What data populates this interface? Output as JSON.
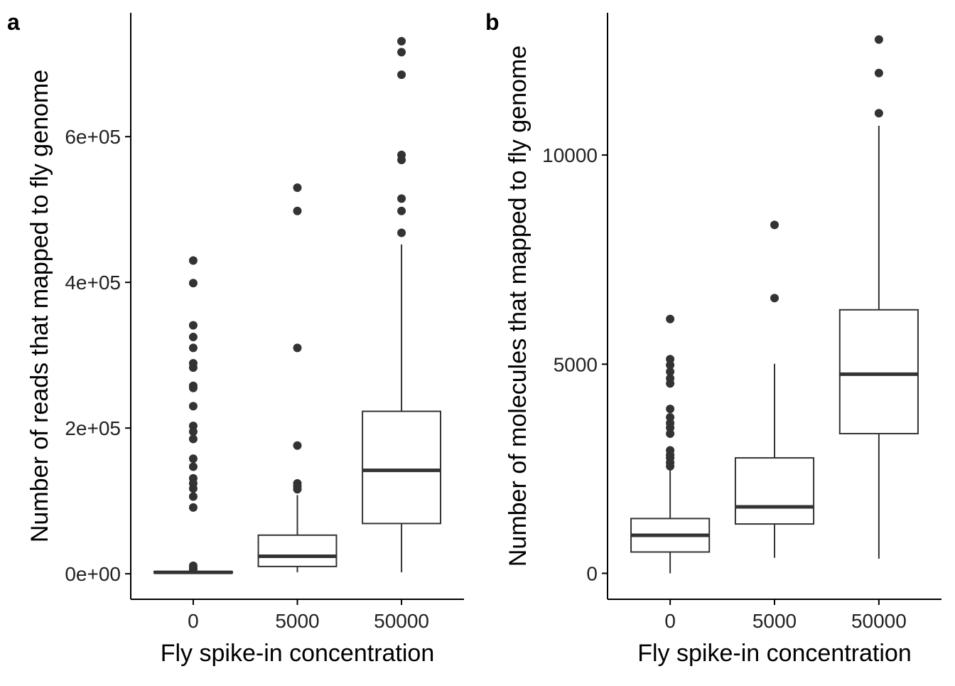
{
  "chart_data": [
    {
      "type": "box",
      "panel_label": "a",
      "xlabel": "Fly spike-in concentration",
      "ylabel": "Number of reads that mapped to fly genome",
      "categories": [
        "0",
        "5000",
        "50000"
      ],
      "ylim": [
        -35000,
        770000
      ],
      "yticks": [
        0,
        200000,
        400000,
        600000
      ],
      "ytick_labels": [
        "0e+00",
        "2e+05",
        "4e+05",
        "6e+05"
      ],
      "grid": false,
      "boxes": [
        {
          "category": "0",
          "whisker_low": 0,
          "q1": 1000,
          "median": 2000,
          "q3": 3000,
          "whisker_high": 4000,
          "outliers": [
            430000,
            399000,
            341000,
            325000,
            310000,
            289000,
            283000,
            258000,
            255000,
            230000,
            203000,
            195000,
            185000,
            158000,
            147000,
            131000,
            124000,
            117000,
            106000,
            91000,
            11000,
            8000,
            6000
          ]
        },
        {
          "category": "5000",
          "whisker_low": 2000,
          "q1": 10000,
          "median": 24000,
          "q3": 53000,
          "whisker_high": 108000,
          "outliers": [
            530000,
            498000,
            310000,
            176000,
            124000,
            120000,
            116000
          ]
        },
        {
          "category": "50000",
          "whisker_low": 2000,
          "q1": 69000,
          "median": 142000,
          "q3": 223000,
          "whisker_high": 452000,
          "outliers": [
            731000,
            716000,
            685000,
            575000,
            568000,
            515000,
            498000,
            468000
          ]
        }
      ]
    },
    {
      "type": "box",
      "panel_label": "b",
      "xlabel": "Fly spike-in concentration",
      "ylabel": "Number of molecules that mapped to fly genome",
      "categories": [
        "0",
        "5000",
        "50000"
      ],
      "ylim": [
        -620,
        13400
      ],
      "yticks": [
        0,
        5000,
        10000
      ],
      "ytick_labels": [
        "0",
        "5000",
        "10000"
      ],
      "grid": false,
      "boxes": [
        {
          "category": "0",
          "whisker_low": 0,
          "q1": 510,
          "median": 910,
          "q3": 1310,
          "whisker_high": 2490,
          "outliers": [
            6080,
            5120,
            4980,
            4820,
            4660,
            4540,
            3930,
            3730,
            3590,
            3480,
            3340,
            2940,
            2830,
            2760,
            2650,
            2560
          ]
        },
        {
          "category": "5000",
          "whisker_low": 370,
          "q1": 1180,
          "median": 1590,
          "q3": 2760,
          "whisker_high": 5010,
          "outliers": [
            8330,
            6580
          ]
        },
        {
          "category": "50000",
          "whisker_low": 350,
          "q1": 3340,
          "median": 4760,
          "q3": 6300,
          "whisker_high": 10700,
          "outliers": [
            12760,
            11960,
            11000
          ]
        }
      ]
    }
  ]
}
